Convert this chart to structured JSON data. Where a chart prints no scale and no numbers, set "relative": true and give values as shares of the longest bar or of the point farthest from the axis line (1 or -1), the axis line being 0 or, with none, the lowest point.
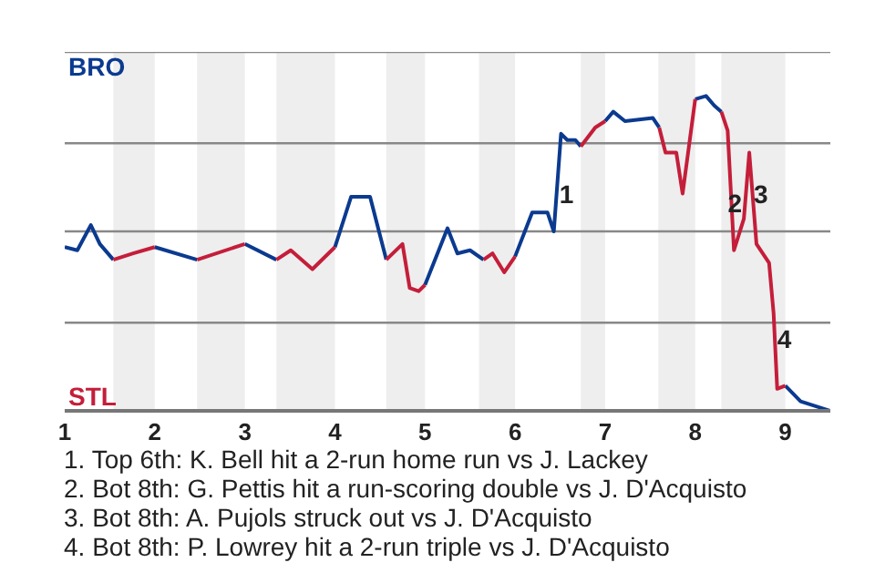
{
  "chart_data": {
    "type": "line",
    "relative": true,
    "series": [
      {
        "name": "BRO",
        "color": "#0b3a8f",
        "x": [
          1.0,
          1.14,
          1.29,
          1.39,
          1.54,
          null,
          2.0,
          2.47,
          null,
          3.0,
          3.35,
          null,
          4.0,
          4.18,
          4.39,
          4.57,
          null,
          5.0,
          5.25,
          5.36,
          5.5,
          5.65,
          null,
          6.0,
          6.19,
          6.36,
          6.43,
          6.51,
          6.58,
          6.67,
          6.73,
          null,
          7.0,
          7.09,
          7.22,
          7.53,
          7.6,
          null,
          8.0,
          8.12,
          8.21,
          8.29,
          null,
          9.0,
          9.17,
          9.5
        ],
        "values": [
          0.52,
          0.51,
          0.59,
          0.53,
          0.48,
          null,
          0.52,
          0.48,
          null,
          0.53,
          0.48,
          null,
          0.52,
          0.68,
          0.68,
          0.48,
          null,
          0.4,
          0.58,
          0.5,
          0.51,
          0.48,
          null,
          0.49,
          0.63,
          0.63,
          0.57,
          0.88,
          0.86,
          0.86,
          0.84,
          null,
          0.92,
          0.95,
          0.92,
          0.93,
          0.9,
          null,
          0.99,
          1,
          0.97,
          0.95,
          null,
          0.08,
          0.03,
          0
        ]
      },
      {
        "name": "STL",
        "color": "#c41e3a",
        "x": [
          1.54,
          1.76,
          2.0,
          null,
          2.47,
          3.0,
          null,
          3.35,
          3.51,
          3.75,
          4.0,
          null,
          4.57,
          4.75,
          4.83,
          4.93,
          5.0,
          null,
          5.65,
          5.75,
          5.88,
          6.0,
          null,
          6.73,
          6.89,
          7.0,
          null,
          7.6,
          7.67,
          7.79,
          7.86,
          7.93,
          8.0,
          null,
          8.29,
          8.36,
          8.43,
          8.54,
          8.6,
          8.68,
          8.82,
          8.87,
          8.91,
          9.0
        ],
        "values": [
          0.48,
          0.5,
          0.52,
          null,
          0.48,
          0.53,
          null,
          0.48,
          0.51,
          0.45,
          0.52,
          null,
          0.48,
          0.53,
          0.39,
          0.38,
          0.4,
          null,
          0.48,
          0.5,
          0.44,
          0.49,
          null,
          0.84,
          0.9,
          0.92,
          null,
          0.9,
          0.82,
          0.82,
          0.69,
          0.84,
          0.99,
          null,
          0.95,
          0.89,
          0.51,
          0.61,
          0.82,
          0.53,
          0.47,
          0.31,
          0.07,
          0.08
        ]
      }
    ],
    "xlim": [
      1,
      9.5
    ],
    "xticks": [
      1,
      2,
      3,
      4,
      5,
      6,
      7,
      8,
      9
    ],
    "tick_labels": "x",
    "legend": false,
    "marker": "none",
    "line_style": "solid",
    "ref_lines": [
      {
        "axis": "y",
        "value": 0.28,
        "color": "#888888"
      },
      {
        "axis": "y",
        "value": 0.57,
        "color": "#888888"
      },
      {
        "axis": "y",
        "value": 0.85,
        "color": "#888888"
      },
      {
        "axis": "y",
        "value": 1.14,
        "color": "#888888"
      }
    ],
    "bands": [
      {
        "axis": "x",
        "from": 1.54,
        "to": 2,
        "color": "#eeeeee"
      },
      {
        "axis": "x",
        "from": 2.47,
        "to": 3,
        "color": "#eeeeee"
      },
      {
        "axis": "x",
        "from": 3.35,
        "to": 4,
        "color": "#eeeeee"
      },
      {
        "axis": "x",
        "from": 4.57,
        "to": 5,
        "color": "#eeeeee"
      },
      {
        "axis": "x",
        "from": 5.6,
        "to": 6,
        "color": "#eeeeee"
      },
      {
        "axis": "x",
        "from": 6.73,
        "to": 7,
        "color": "#eeeeee"
      },
      {
        "axis": "x",
        "from": 7.59,
        "to": 8,
        "color": "#eeeeee"
      },
      {
        "axis": "x",
        "from": 8.29,
        "to": 9,
        "color": "#eeeeee"
      }
    ],
    "annotations": [
      {
        "text": "1",
        "x": 6.57,
        "y": 0.69
      },
      {
        "text": "2",
        "x": 8.44,
        "y": 0.66
      },
      {
        "text": "3",
        "x": 8.73,
        "y": 0.69
      },
      {
        "text": "4",
        "x": 8.99,
        "y": 0.23
      },
      "1. Top 6th: K. Bell hit a 2-run home run vs J. Lackey",
      "2. Bot 8th: G. Pettis hit a run-scoring double vs J. D'Acquisto",
      "3. Bot 8th: A. Pujols struck out vs J. D'Acquisto",
      "4. Bot 8th: P. Lowrey hit a 2-run triple vs J. D'Acquisto"
    ]
  }
}
